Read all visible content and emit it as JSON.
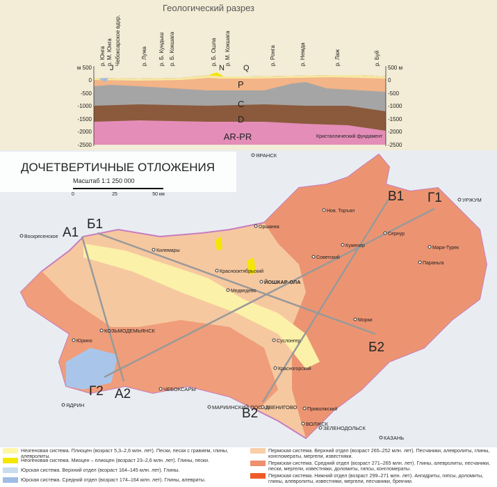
{
  "section": {
    "title": "Геологический разрез",
    "left_axis": [
      "м 500",
      "0",
      "-500",
      "-1000",
      "-1500",
      "-2000",
      "-2500"
    ],
    "right_axis": [
      "500 м",
      "0",
      "-500",
      "-1000",
      "-1500",
      "-2000",
      "-2500"
    ],
    "rivers": [
      "р. Юнга",
      "р. М. Юнга",
      "Чебоксарское вдхр.",
      "р. Лужа",
      "р. Б. Кундыш",
      "р. Б. Кокшага",
      "р. Б. Ошла",
      "р. М. Кокшага",
      "р. Ронга",
      "р. Немда",
      "р. Лаж",
      "р. Буй"
    ],
    "layers": {
      "J": "J",
      "N": "N",
      "Q": "Q",
      "P": "P",
      "C": "C",
      "D": "D",
      "AR": "AR-PR",
      "basement": "Кристаллический фундамент"
    }
  },
  "map": {
    "title": "ДОЧЕТВЕРТИЧНЫЕ ОТЛОЖЕНИЯ",
    "scale": "Масштаб 1:1 250 000",
    "scale_ticks": [
      "0",
      "25",
      "50 км"
    ],
    "profiles": [
      {
        "start": "А1",
        "end": "А2"
      },
      {
        "start": "Б1",
        "end": "Б2"
      },
      {
        "start": "В1",
        "end": "В2"
      },
      {
        "start": "Г1",
        "end": "Г2"
      }
    ],
    "cities": [
      "Воскресенское",
      "Оршанка",
      "Килемары",
      "Нов. Торъял",
      "Сернур",
      "Мари-Турек",
      "Параньга",
      "Куженер",
      "Советский",
      "Краснооктябрьский",
      "Медведево",
      "ЙОШКАР-ОЛА",
      "Морки",
      "КОЗЬМОДЕМЬЯНСК",
      "Юрино",
      "Суслонгер",
      "Красногорский",
      "ЧЕБОКСАРЫ",
      "МАРИИНСКИЙ ПОСАД",
      "ЯДРИН",
      "ЗВЕНИГОВО",
      "Приволжский",
      "ВОЛЖСК",
      "ЗЕЛЕНОДОЛЬСК",
      "КАЗАНЬ",
      "ЯРАНСК",
      "УРЖУМ"
    ]
  },
  "legend": {
    "left": [
      "Неогеновая система. Плиоцен (возраст 5,3–2,6 млн. лет). Пески, пески с гравием, глины, алевролиты.",
      "Неогеновая система. Миоцен – плиоцен (возраст 23–2,6 млн. лет). Глины, пески.",
      "Юрская система. Верхний отдел (возраст 164–145 млн. лет). Глины.",
      "Юрская система. Средний отдел (возраст 174–164 млн. лет). Глины, алевриты."
    ],
    "right": [
      "Пермская система. Верхний отдел (возраст 265–252 млн. лет). Песчаники, алевролиты, глины, конгломераты, мергели, известняки.",
      "Пермская система. Средний отдел (возраст 271–265 млн. лет). Глины, алевролиты, песчаники, пески, мергели, известняки, доломиты, гипсы, конгломераты.",
      "Пермская система. Нижний отдел (возраст 299–271 млн. лет). Ангидриты, гипсы, доломиты, глины, алевролиты, известняки, мергели, песчаники, брекчии."
    ]
  }
}
